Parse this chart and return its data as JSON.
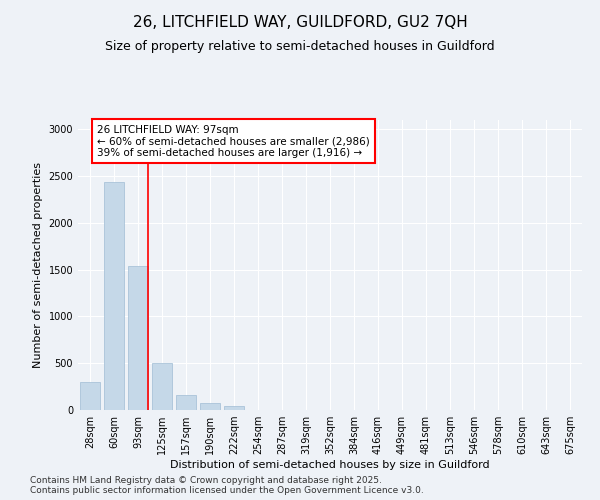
{
  "title_line1": "26, LITCHFIELD WAY, GUILDFORD, GU2 7QH",
  "title_line2": "Size of property relative to semi-detached houses in Guildford",
  "xlabel": "Distribution of semi-detached houses by size in Guildford",
  "ylabel": "Number of semi-detached properties",
  "categories": [
    "28sqm",
    "60sqm",
    "93sqm",
    "125sqm",
    "157sqm",
    "190sqm",
    "222sqm",
    "254sqm",
    "287sqm",
    "319sqm",
    "352sqm",
    "384sqm",
    "416sqm",
    "449sqm",
    "481sqm",
    "513sqm",
    "546sqm",
    "578sqm",
    "610sqm",
    "643sqm",
    "675sqm"
  ],
  "values": [
    300,
    2440,
    1540,
    500,
    160,
    80,
    45,
    0,
    0,
    0,
    0,
    0,
    0,
    0,
    0,
    0,
    0,
    0,
    0,
    0,
    0
  ],
  "bar_color": "#c5d8e8",
  "bar_edge_color": "#a0bdd4",
  "vline_index": 2,
  "vline_color": "red",
  "annotation_text": "26 LITCHFIELD WAY: 97sqm\n← 60% of semi-detached houses are smaller (2,986)\n39% of semi-detached houses are larger (1,916) →",
  "annotation_box_color": "white",
  "annotation_box_edge_color": "red",
  "ylim": [
    0,
    3100
  ],
  "yticks": [
    0,
    500,
    1000,
    1500,
    2000,
    2500,
    3000
  ],
  "background_color": "#eef2f7",
  "footer_line1": "Contains HM Land Registry data © Crown copyright and database right 2025.",
  "footer_line2": "Contains public sector information licensed under the Open Government Licence v3.0.",
  "title_fontsize": 11,
  "subtitle_fontsize": 9,
  "axis_label_fontsize": 8,
  "tick_fontsize": 7,
  "annotation_fontsize": 7.5,
  "footer_fontsize": 6.5
}
